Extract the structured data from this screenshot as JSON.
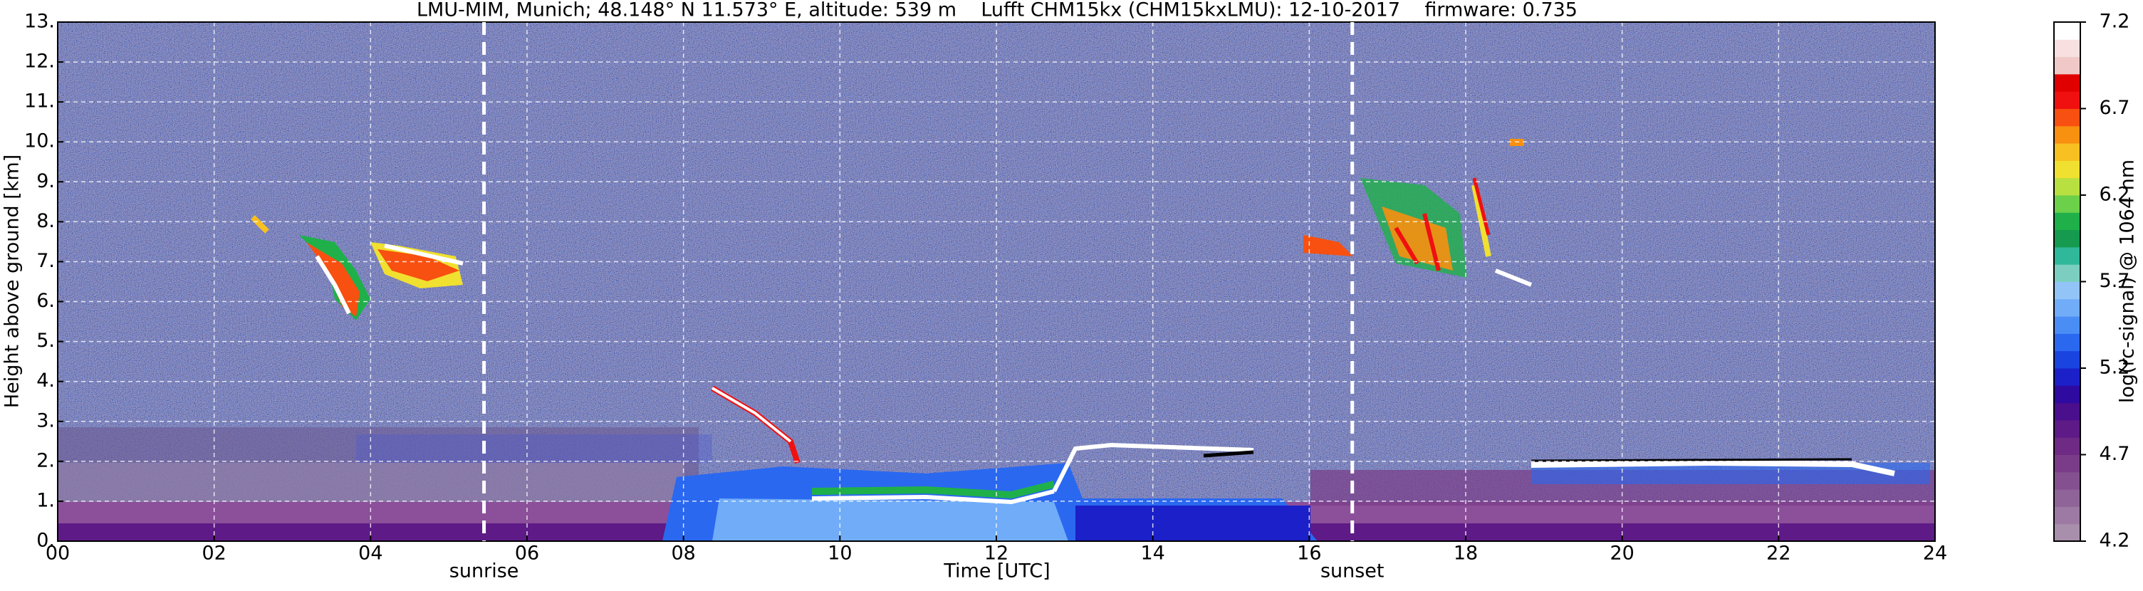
{
  "chart_data": {
    "type": "heatmap",
    "title": "LMU-MIM, Munich; 48.148° N 11.573° E, altitude: 539 m    Lufft CHM15kx (CHM15kxLMU): 12-10-2017    firmware: 0.735",
    "xlabel": "Time [UTC]",
    "ylabel": "Height above ground [km]",
    "colorbar_label": "log(rc-signal) @ 1064 nm",
    "xlim": [
      0,
      24
    ],
    "xticks": [
      {
        "value": 0,
        "label": "00"
      },
      {
        "value": 2,
        "label": "02"
      },
      {
        "value": 4,
        "label": "04"
      },
      {
        "value": 6,
        "label": "06"
      },
      {
        "value": 8,
        "label": "08"
      },
      {
        "value": 10,
        "label": "10"
      },
      {
        "value": 12,
        "label": "12"
      },
      {
        "value": 14,
        "label": "14"
      },
      {
        "value": 16,
        "label": "16"
      },
      {
        "value": 18,
        "label": "18"
      },
      {
        "value": 20,
        "label": "20"
      },
      {
        "value": 22,
        "label": "22"
      },
      {
        "value": 24,
        "label": "24"
      }
    ],
    "ylim": [
      0,
      13
    ],
    "yticks": [
      {
        "value": 0,
        "label": "0."
      },
      {
        "value": 1,
        "label": "1."
      },
      {
        "value": 2,
        "label": "2."
      },
      {
        "value": 3,
        "label": "3."
      },
      {
        "value": 4,
        "label": "4."
      },
      {
        "value": 5,
        "label": "5."
      },
      {
        "value": 6,
        "label": "6."
      },
      {
        "value": 7,
        "label": "7."
      },
      {
        "value": 8,
        "label": "8."
      },
      {
        "value": 9,
        "label": "9."
      },
      {
        "value": 10,
        "label": "10."
      },
      {
        "value": 11,
        "label": "11."
      },
      {
        "value": 12,
        "label": "12."
      },
      {
        "value": 13,
        "label": "13."
      }
    ],
    "clim": [
      4.2,
      7.2
    ],
    "cticks": [
      4.2,
      4.7,
      5.2,
      5.7,
      6.2,
      6.7,
      7.2
    ],
    "colors": [
      "#a88fab",
      "#9c7aa3",
      "#8f6498",
      "#85508f",
      "#7a3c88",
      "#6e2a84",
      "#5e1a86",
      "#4a0f8c",
      "#2e0aa0",
      "#1b20c8",
      "#1a44e0",
      "#2a68f0",
      "#4a8ef5",
      "#70acf8",
      "#92c4f8",
      "#7ccfc0",
      "#2fb89a",
      "#159a4f",
      "#1fb04a",
      "#6cd04a",
      "#b8e040",
      "#f0e030",
      "#f8c020",
      "#f89010",
      "#f85010",
      "#f01010",
      "#e00000",
      "#f0c8c8",
      "#f8e0e0",
      "#ffffff"
    ],
    "grid": true,
    "annotations": [
      {
        "text": "sunrise",
        "x": 5.45
      },
      {
        "text": "sunset",
        "x": 16.55
      }
    ]
  }
}
